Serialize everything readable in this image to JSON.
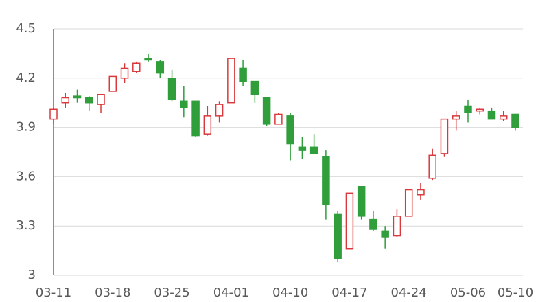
{
  "chart_data": {
    "type": "candlestick",
    "categories": [
      "03-11",
      null,
      null,
      null,
      null,
      "03-18",
      null,
      null,
      null,
      null,
      "03-25",
      null,
      null,
      null,
      null,
      "04-01",
      null,
      null,
      null,
      null,
      "04-10",
      null,
      null,
      null,
      null,
      "04-17",
      null,
      null,
      null,
      null,
      "04-24",
      null,
      null,
      null,
      null,
      "05-06",
      null,
      null,
      null,
      "05-10"
    ],
    "open": [
      3.95,
      4.05,
      4.09,
      4.08,
      4.04,
      4.12,
      4.2,
      4.24,
      4.32,
      4.3,
      4.2,
      4.06,
      4.06,
      3.86,
      3.97,
      4.05,
      4.26,
      4.18,
      4.08,
      3.92,
      3.97,
      3.78,
      3.78,
      3.72,
      3.37,
      3.16,
      3.54,
      3.34,
      3.27,
      3.24,
      3.36,
      3.49,
      3.59,
      3.74,
      3.95,
      4.03,
      4.0,
      4.0,
      3.95,
      3.98
    ],
    "high": [
      4.02,
      4.11,
      4.13,
      4.09,
      4.1,
      4.21,
      4.29,
      4.3,
      4.35,
      4.31,
      4.25,
      4.15,
      4.06,
      4.03,
      4.06,
      4.32,
      4.31,
      4.18,
      4.08,
      3.99,
      3.99,
      3.84,
      3.86,
      3.76,
      3.39,
      3.5,
      3.54,
      3.39,
      3.3,
      3.4,
      3.52,
      3.56,
      3.77,
      3.95,
      4.0,
      4.07,
      4.02,
      4.02,
      4.0,
      3.98
    ],
    "low": [
      3.92,
      4.02,
      4.05,
      4.0,
      3.99,
      4.12,
      4.17,
      4.23,
      4.3,
      4.2,
      4.06,
      3.96,
      3.84,
      3.85,
      3.93,
      4.05,
      4.15,
      4.05,
      3.91,
      3.92,
      3.7,
      3.71,
      3.74,
      3.34,
      3.08,
      3.16,
      3.34,
      3.27,
      3.16,
      3.23,
      3.36,
      3.46,
      3.58,
      3.72,
      3.88,
      3.93,
      3.98,
      3.95,
      3.94,
      3.88
    ],
    "close": [
      4.01,
      4.08,
      4.08,
      4.05,
      4.1,
      4.21,
      4.26,
      4.29,
      4.31,
      4.23,
      4.07,
      4.02,
      3.85,
      3.97,
      4.04,
      4.32,
      4.18,
      4.1,
      3.92,
      3.98,
      3.8,
      3.76,
      3.74,
      3.43,
      3.1,
      3.5,
      3.36,
      3.28,
      3.23,
      3.36,
      3.52,
      3.52,
      3.73,
      3.95,
      3.97,
      3.99,
      4.01,
      3.95,
      3.97,
      3.9
    ],
    "up_color": "#d9393c",
    "down_color": "#2f9e3b",
    "ylim": [
      3,
      4.5
    ],
    "yticks": [
      3,
      3.3,
      3.6,
      3.9,
      4.2,
      4.5
    ],
    "grid": true
  }
}
